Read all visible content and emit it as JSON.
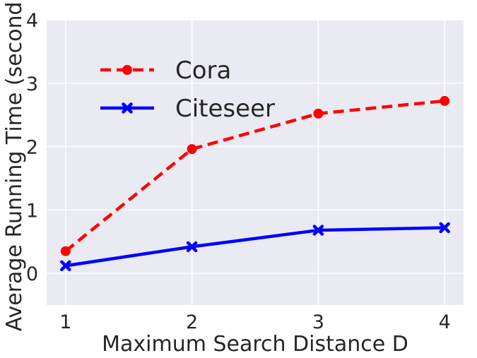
{
  "chart_data": {
    "type": "line",
    "title": "",
    "xlabel": "Maximum Search Distance D",
    "ylabel": "Average Running Time (second)",
    "x": [
      1,
      2,
      3,
      4
    ],
    "xlim": [
      0.85,
      4.15
    ],
    "ylim": [
      -0.5,
      4
    ],
    "xticks": [
      1,
      2,
      3,
      4
    ],
    "yticks": [
      0,
      1,
      2,
      3,
      4
    ],
    "grid": true,
    "legend_position": "top-left",
    "background_color": "#eaeaf2",
    "series": [
      {
        "name": "Cora",
        "values": [
          0.35,
          1.96,
          2.52,
          2.72
        ],
        "color": "#ff0000",
        "line_style": "dashed",
        "marker": "circle"
      },
      {
        "name": "Citeseer",
        "values": [
          0.12,
          0.42,
          0.68,
          0.72
        ],
        "color": "#0000ff",
        "line_style": "solid",
        "marker": "x"
      }
    ]
  }
}
